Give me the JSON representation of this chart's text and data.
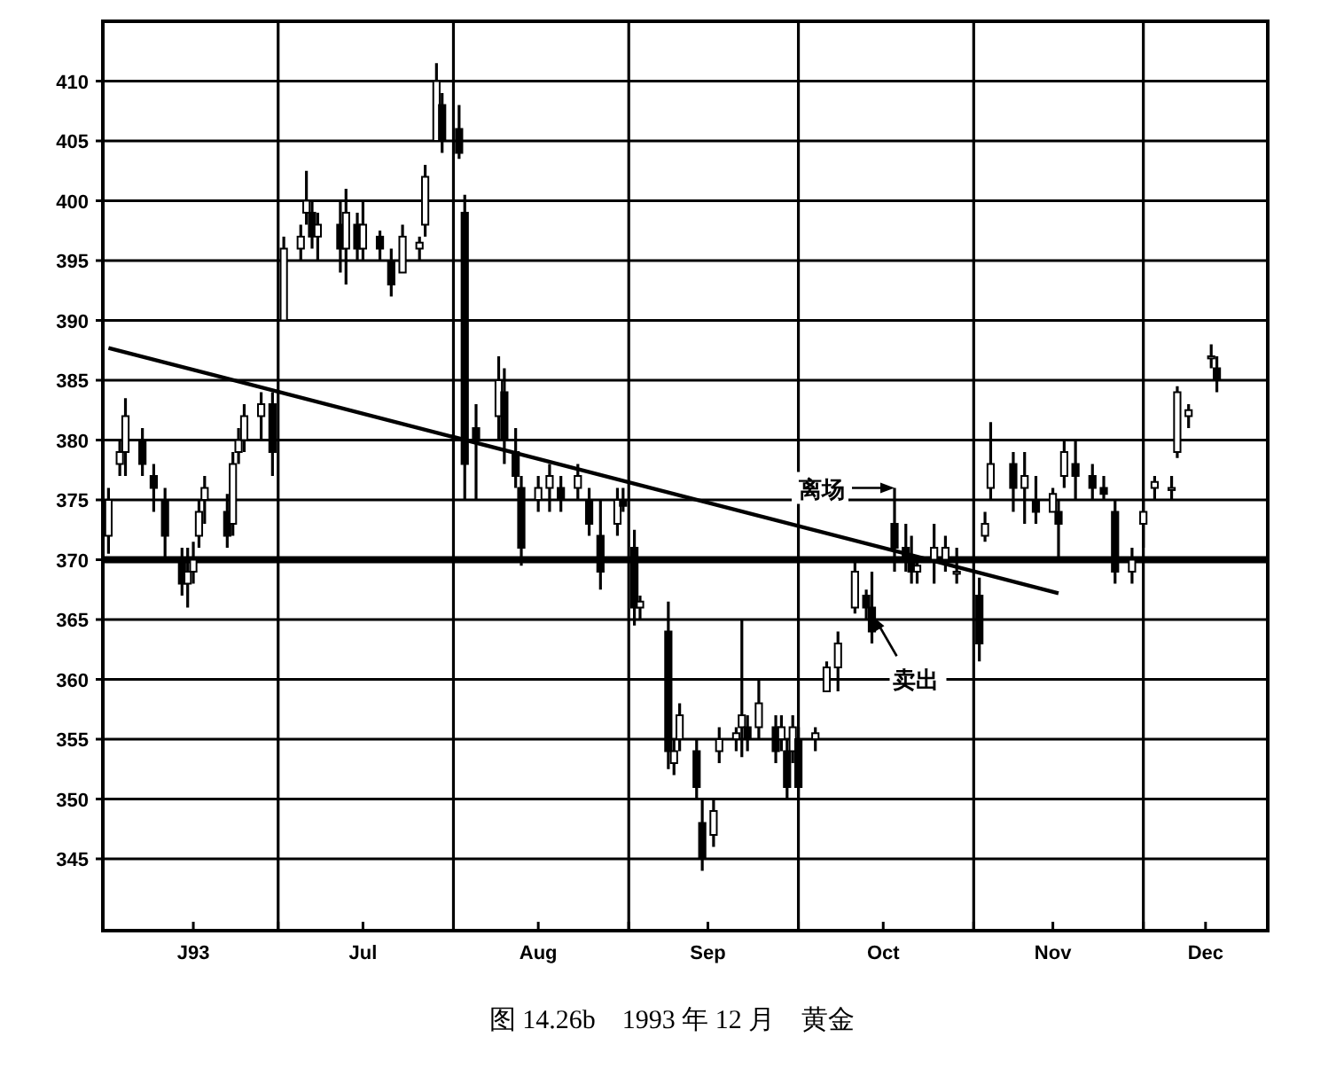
{
  "chart_data": {
    "type": "candlestick",
    "annotations": [
      {
        "text": "离场",
        "x": "1993-10-18",
        "y": 376
      },
      {
        "text": "卖出",
        "x": "1993-10-14",
        "y": 365.5
      },
      "图 14.26b　1993 年 12 月　黄金"
    ],
    "series": [
      {
        "type": "candlestick",
        "color": "#000000",
        "x": [
          "1993-06-01",
          "1993-06-03",
          "1993-06-04",
          "1993-06-07",
          "1993-06-09",
          "1993-06-11",
          "1993-06-14",
          "1993-06-15",
          "1993-06-16",
          "1993-06-17",
          "1993-06-18",
          "1993-06-22",
          "1993-06-23",
          "1993-06-24",
          "1993-06-25",
          "1993-06-28",
          "1993-06-30",
          "1993-07-02",
          "1993-07-05",
          "1993-07-06",
          "1993-07-07",
          "1993-07-08",
          "1993-07-12",
          "1993-07-13",
          "1993-07-15",
          "1993-07-16",
          "1993-07-19",
          "1993-07-21",
          "1993-07-23",
          "1993-07-26",
          "1993-07-27",
          "1993-07-29",
          "1993-07-30",
          "1993-08-02",
          "1993-08-03",
          "1993-08-05",
          "1993-08-09",
          "1993-08-10",
          "1993-08-12",
          "1993-08-13",
          "1993-08-16",
          "1993-08-18",
          "1993-08-20",
          "1993-08-23",
          "1993-08-25",
          "1993-08-27",
          "1993-08-30",
          "1993-08-31",
          "1993-09-02",
          "1993-09-03",
          "1993-09-08",
          "1993-09-09",
          "1993-09-10",
          "1993-09-13",
          "1993-09-14",
          "1993-09-16",
          "1993-09-17",
          "1993-09-20",
          "1993-09-21",
          "1993-09-22",
          "1993-09-24",
          "1993-09-27",
          "1993-09-28",
          "1993-09-29",
          "1993-09-30",
          "1993-10-01",
          "1993-10-04",
          "1993-10-06",
          "1993-10-08",
          "1993-10-11",
          "1993-10-13",
          "1993-10-14",
          "1993-10-18",
          "1993-10-20",
          "1993-10-21",
          "1993-10-22",
          "1993-10-25",
          "1993-10-27",
          "1993-10-29",
          "1993-11-02",
          "1993-11-03",
          "1993-11-04",
          "1993-11-08",
          "1993-11-10",
          "1993-11-12",
          "1993-11-15",
          "1993-11-16",
          "1993-11-17",
          "1993-11-19",
          "1993-11-22",
          "1993-11-24",
          "1993-11-26",
          "1993-11-29",
          "1993-12-01",
          "1993-12-03",
          "1993-12-06",
          "1993-12-07",
          "1993-12-09",
          "1993-12-13",
          "1993-12-14"
        ],
        "ohlc": [
          [
            372,
            376,
            370.5,
            375
          ],
          [
            378,
            380,
            377,
            379
          ],
          [
            379,
            383.5,
            377,
            382
          ],
          [
            380,
            381,
            377,
            378
          ],
          [
            377,
            378,
            374,
            376
          ],
          [
            375,
            376,
            370,
            372
          ],
          [
            370,
            371,
            367,
            368
          ],
          [
            368,
            371,
            366,
            369
          ],
          [
            369,
            371.5,
            368,
            370
          ],
          [
            372,
            375,
            371,
            374
          ],
          [
            375,
            377,
            373,
            376
          ],
          [
            374,
            375.5,
            371,
            372
          ],
          [
            373,
            379,
            372,
            378
          ],
          [
            379,
            381,
            378,
            380
          ],
          [
            380,
            383,
            379,
            382
          ],
          [
            382,
            384,
            380,
            383
          ],
          [
            383,
            384,
            377,
            379
          ],
          [
            390,
            397,
            390,
            396
          ],
          [
            396,
            398,
            395,
            397
          ],
          [
            399,
            402.5,
            398,
            400
          ],
          [
            399,
            400,
            396,
            397
          ],
          [
            397,
            399,
            395,
            398
          ],
          [
            398,
            400,
            394,
            396
          ],
          [
            396,
            401,
            393,
            399
          ],
          [
            398,
            399,
            395,
            396
          ],
          [
            396,
            400,
            395,
            398
          ],
          [
            397,
            397.5,
            395,
            396
          ],
          [
            395,
            396,
            392,
            393
          ],
          [
            394,
            398,
            394,
            397
          ],
          [
            396,
            397,
            395,
            396.5
          ],
          [
            398,
            403,
            397,
            402
          ],
          [
            405,
            411.5,
            405,
            410
          ],
          [
            408,
            409,
            404,
            405
          ],
          [
            406,
            408,
            403.5,
            404
          ],
          [
            399,
            400.5,
            375,
            378
          ],
          [
            381,
            383,
            375,
            380
          ],
          [
            382,
            387,
            380,
            385
          ],
          [
            384,
            386,
            378,
            380
          ],
          [
            379,
            381,
            376,
            377
          ],
          [
            376,
            377,
            369.5,
            371
          ],
          [
            375,
            377,
            374,
            376
          ],
          [
            376,
            378,
            374,
            377
          ],
          [
            376,
            377,
            374,
            375
          ],
          [
            376,
            378,
            375,
            377
          ],
          [
            375,
            376,
            372,
            373
          ],
          [
            372,
            375,
            367.5,
            369
          ],
          [
            373,
            376,
            372,
            375
          ],
          [
            375,
            376,
            374,
            374.5
          ],
          [
            371,
            372.5,
            364.5,
            366
          ],
          [
            366,
            367,
            365,
            366.5
          ],
          [
            364,
            366.5,
            352.5,
            354
          ],
          [
            353,
            355,
            352,
            354
          ],
          [
            355,
            358,
            354,
            357
          ],
          [
            354,
            355,
            350,
            351
          ],
          [
            348,
            350,
            344,
            345
          ],
          [
            347,
            350,
            346,
            349
          ],
          [
            354,
            356,
            353,
            355
          ],
          [
            355,
            356,
            354,
            355.5
          ],
          [
            356,
            365,
            353.5,
            357
          ],
          [
            356,
            357,
            354,
            355
          ],
          [
            356,
            360,
            355,
            358
          ],
          [
            356,
            357,
            353,
            354
          ],
          [
            355,
            357,
            354,
            356
          ],
          [
            354,
            355,
            350,
            351
          ],
          [
            354,
            357,
            353,
            356
          ],
          [
            355,
            356,
            350,
            351
          ],
          [
            355,
            356,
            354,
            355.5
          ],
          [
            359,
            361.5,
            359,
            361
          ],
          [
            361,
            364,
            359,
            363
          ],
          [
            366,
            370,
            365.5,
            369
          ],
          [
            367,
            367.5,
            365,
            366
          ],
          [
            366,
            369,
            363,
            364
          ],
          [
            373,
            376,
            369,
            371
          ],
          [
            371,
            373,
            369,
            370
          ],
          [
            370,
            372,
            368,
            369
          ],
          [
            369,
            370,
            368,
            369.5
          ],
          [
            370,
            373,
            368,
            371
          ],
          [
            370,
            372,
            369,
            371
          ],
          [
            369,
            371,
            368,
            369
          ],
          [
            367,
            368.5,
            361.5,
            363
          ],
          [
            372,
            374,
            371.5,
            373
          ],
          [
            376,
            381.5,
            375,
            378
          ],
          [
            378,
            379,
            374,
            376
          ],
          [
            376,
            379,
            373,
            377
          ],
          [
            375,
            377,
            373,
            374
          ],
          [
            374,
            376,
            374,
            375.5
          ],
          [
            374,
            375,
            370,
            373
          ],
          [
            377,
            380,
            376,
            379
          ],
          [
            378,
            380,
            375,
            377
          ],
          [
            377,
            378,
            375,
            376
          ],
          [
            376,
            377,
            375,
            375.5
          ],
          [
            374,
            375,
            368,
            369
          ],
          [
            369,
            371,
            368,
            370
          ],
          [
            373,
            375,
            371,
            374
          ],
          [
            376,
            377,
            375,
            376.5
          ],
          [
            376,
            377,
            375,
            376
          ],
          [
            379,
            384.5,
            378.5,
            384
          ],
          [
            382,
            383,
            381,
            382.5
          ],
          [
            387,
            388,
            386,
            387
          ],
          [
            386,
            387,
            384,
            385
          ]
        ]
      },
      {
        "type": "line",
        "color": "#000000",
        "x": [
          "1993-06-01",
          "1993-11-16"
        ],
        "values": [
          387.7,
          367.2
        ]
      }
    ],
    "ref_lines": [
      {
        "axis": "y",
        "value": 370,
        "color": "#000000"
      }
    ],
    "xlim": [
      "1993-05-31",
      "1993-12-23"
    ],
    "xticks": [
      {
        "value": "1993-06-16",
        "label": "J93"
      },
      {
        "value": "1993-07-01",
        "label": null
      },
      {
        "value": "1993-07-16",
        "label": "Jul"
      },
      {
        "value": "1993-08-01",
        "label": null
      },
      {
        "value": "1993-08-16",
        "label": "Aug"
      },
      {
        "value": "1993-09-01",
        "label": null
      },
      {
        "value": "1993-09-15",
        "label": "Sep"
      },
      {
        "value": "1993-10-01",
        "label": null
      },
      {
        "value": "1993-10-16",
        "label": "Oct"
      },
      {
        "value": "1993-11-01",
        "label": null
      },
      {
        "value": "1993-11-15",
        "label": "Nov"
      },
      {
        "value": "1993-12-01",
        "label": null
      },
      {
        "value": "1993-12-12",
        "label": "Dec"
      }
    ],
    "ylim": [
      339,
      415
    ],
    "yticks": [
      345,
      350,
      355,
      360,
      365,
      370,
      375,
      380,
      385,
      390,
      395,
      400,
      405,
      410
    ],
    "grid": true
  }
}
